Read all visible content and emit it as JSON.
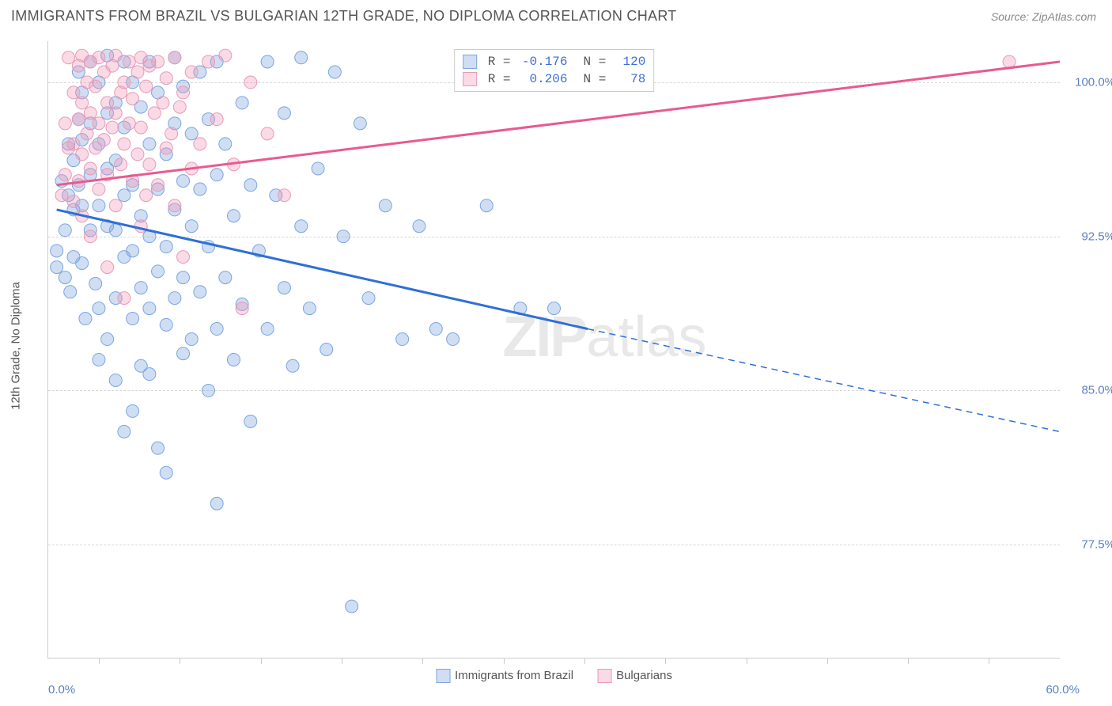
{
  "title": "IMMIGRANTS FROM BRAZIL VS BULGARIAN 12TH GRADE, NO DIPLOMA CORRELATION CHART",
  "source_label": "Source:",
  "source_name": "ZipAtlas.com",
  "watermark_text_bold": "ZIP",
  "watermark_text_light": "atlas",
  "chart": {
    "type": "scatter",
    "y_axis_label": "12th Grade, No Diploma",
    "xlim": [
      0,
      60
    ],
    "ylim": [
      72,
      102
    ],
    "x_axis_min_label": "0.0%",
    "x_axis_max_label": "60.0%",
    "x_tick_positions_pct": [
      5,
      13,
      21,
      29,
      37,
      45,
      53,
      61,
      69,
      77,
      85,
      93
    ],
    "y_grid": [
      {
        "value": 100.0,
        "label": "100.0%"
      },
      {
        "value": 92.5,
        "label": "92.5%"
      },
      {
        "value": 85.0,
        "label": "85.0%"
      },
      {
        "value": 77.5,
        "label": "77.5%"
      }
    ],
    "background_color": "#ffffff",
    "grid_color": "#d8d8d8",
    "axis_color": "#cccccc",
    "tick_label_color": "#5a7fc4",
    "label_color": "#555555",
    "title_color": "#555555",
    "title_fontsize": 18,
    "label_fontsize": 15,
    "tick_fontsize": 15,
    "series": [
      {
        "name": "Immigrants from Brazil",
        "legend_label": "Immigrants from Brazil",
        "color_fill": "rgba(120,160,220,0.35)",
        "color_stroke": "#7aa6e0",
        "line_color": "#2f6fd6",
        "marker_radius": 8,
        "line_width": 3,
        "r_value": "-0.176",
        "n_value": "120",
        "trend": {
          "x1": 0.5,
          "y1": 93.8,
          "x2_solid": 32,
          "y2_solid": 88.0,
          "x2": 60,
          "y2": 83.0
        },
        "points": [
          [
            0.5,
            91.8
          ],
          [
            0.5,
            91.0
          ],
          [
            0.8,
            95.2
          ],
          [
            1.0,
            92.8
          ],
          [
            1.0,
            90.5
          ],
          [
            1.2,
            97.0
          ],
          [
            1.2,
            94.5
          ],
          [
            1.3,
            89.8
          ],
          [
            1.5,
            96.2
          ],
          [
            1.5,
            93.8
          ],
          [
            1.5,
            91.5
          ],
          [
            1.8,
            100.5
          ],
          [
            1.8,
            98.2
          ],
          [
            1.8,
            95.0
          ],
          [
            2.0,
            99.5
          ],
          [
            2.0,
            97.2
          ],
          [
            2.0,
            94.0
          ],
          [
            2.0,
            91.2
          ],
          [
            2.2,
            88.5
          ],
          [
            2.5,
            101.0
          ],
          [
            2.5,
            98.0
          ],
          [
            2.5,
            95.5
          ],
          [
            2.5,
            92.8
          ],
          [
            2.8,
            90.2
          ],
          [
            3.0,
            100.0
          ],
          [
            3.0,
            97.0
          ],
          [
            3.0,
            94.0
          ],
          [
            3.0,
            89.0
          ],
          [
            3.0,
            86.5
          ],
          [
            3.5,
            101.3
          ],
          [
            3.5,
            98.5
          ],
          [
            3.5,
            95.8
          ],
          [
            3.5,
            93.0
          ],
          [
            3.5,
            87.5
          ],
          [
            4.0,
            99.0
          ],
          [
            4.0,
            96.2
          ],
          [
            4.0,
            92.8
          ],
          [
            4.0,
            89.5
          ],
          [
            4.0,
            85.5
          ],
          [
            4.5,
            101.0
          ],
          [
            4.5,
            97.8
          ],
          [
            4.5,
            94.5
          ],
          [
            4.5,
            91.5
          ],
          [
            4.5,
            83.0
          ],
          [
            5.0,
            100.0
          ],
          [
            5.0,
            95.0
          ],
          [
            5.0,
            91.8
          ],
          [
            5.0,
            88.5
          ],
          [
            5.0,
            84.0
          ],
          [
            5.5,
            98.8
          ],
          [
            5.5,
            93.5
          ],
          [
            5.5,
            90.0
          ],
          [
            5.5,
            86.2
          ],
          [
            6.0,
            101.0
          ],
          [
            6.0,
            97.0
          ],
          [
            6.0,
            92.5
          ],
          [
            6.0,
            89.0
          ],
          [
            6.0,
            85.8
          ],
          [
            6.5,
            99.5
          ],
          [
            6.5,
            94.8
          ],
          [
            6.5,
            90.8
          ],
          [
            6.5,
            82.2
          ],
          [
            7.0,
            96.5
          ],
          [
            7.0,
            92.0
          ],
          [
            7.0,
            88.2
          ],
          [
            7.0,
            81.0
          ],
          [
            7.5,
            101.2
          ],
          [
            7.5,
            98.0
          ],
          [
            7.5,
            93.8
          ],
          [
            7.5,
            89.5
          ],
          [
            8.0,
            99.8
          ],
          [
            8.0,
            95.2
          ],
          [
            8.0,
            90.5
          ],
          [
            8.0,
            86.8
          ],
          [
            8.5,
            97.5
          ],
          [
            8.5,
            93.0
          ],
          [
            8.5,
            87.5
          ],
          [
            9.0,
            100.5
          ],
          [
            9.0,
            94.8
          ],
          [
            9.0,
            89.8
          ],
          [
            9.5,
            98.2
          ],
          [
            9.5,
            92.0
          ],
          [
            9.5,
            85.0
          ],
          [
            10.0,
            101.0
          ],
          [
            10.0,
            95.5
          ],
          [
            10.0,
            88.0
          ],
          [
            10.0,
            79.5
          ],
          [
            10.5,
            97.0
          ],
          [
            10.5,
            90.5
          ],
          [
            11.0,
            93.5
          ],
          [
            11.0,
            86.5
          ],
          [
            11.5,
            99.0
          ],
          [
            11.5,
            89.2
          ],
          [
            12.0,
            95.0
          ],
          [
            12.0,
            83.5
          ],
          [
            12.5,
            91.8
          ],
          [
            13.0,
            101.0
          ],
          [
            13.0,
            88.0
          ],
          [
            13.5,
            94.5
          ],
          [
            14.0,
            98.5
          ],
          [
            14.0,
            90.0
          ],
          [
            14.5,
            86.2
          ],
          [
            15.0,
            101.2
          ],
          [
            15.0,
            93.0
          ],
          [
            15.5,
            89.0
          ],
          [
            16.0,
            95.8
          ],
          [
            16.5,
            87.0
          ],
          [
            17.0,
            100.5
          ],
          [
            17.5,
            92.5
          ],
          [
            18.0,
            74.5
          ],
          [
            18.5,
            98.0
          ],
          [
            19.0,
            89.5
          ],
          [
            20.0,
            94.0
          ],
          [
            21.0,
            87.5
          ],
          [
            22.0,
            93.0
          ],
          [
            23.0,
            88.0
          ],
          [
            24.0,
            87.5
          ],
          [
            26.0,
            94.0
          ],
          [
            28.0,
            89.0
          ],
          [
            30.0,
            89.0
          ]
        ]
      },
      {
        "name": "Bulgarians",
        "legend_label": "Bulgarians",
        "color_fill": "rgba(240,150,180,0.35)",
        "color_stroke": "#e89ab8",
        "line_color": "#e85a8f",
        "marker_radius": 8,
        "line_width": 3,
        "r_value": "0.206",
        "n_value": "78",
        "trend": {
          "x1": 0.5,
          "y1": 95.0,
          "x2": 60,
          "y2": 101.0
        },
        "points": [
          [
            0.8,
            94.5
          ],
          [
            1.0,
            98.0
          ],
          [
            1.0,
            95.5
          ],
          [
            1.2,
            101.2
          ],
          [
            1.2,
            96.8
          ],
          [
            1.5,
            99.5
          ],
          [
            1.5,
            97.0
          ],
          [
            1.5,
            94.2
          ],
          [
            1.8,
            100.8
          ],
          [
            1.8,
            98.2
          ],
          [
            1.8,
            95.2
          ],
          [
            2.0,
            101.3
          ],
          [
            2.0,
            99.0
          ],
          [
            2.0,
            96.5
          ],
          [
            2.0,
            93.5
          ],
          [
            2.3,
            100.0
          ],
          [
            2.3,
            97.5
          ],
          [
            2.5,
            101.0
          ],
          [
            2.5,
            98.5
          ],
          [
            2.5,
            95.8
          ],
          [
            2.5,
            92.5
          ],
          [
            2.8,
            99.8
          ],
          [
            2.8,
            96.8
          ],
          [
            3.0,
            101.2
          ],
          [
            3.0,
            98.0
          ],
          [
            3.0,
            94.8
          ],
          [
            3.3,
            100.5
          ],
          [
            3.3,
            97.2
          ],
          [
            3.5,
            99.0
          ],
          [
            3.5,
            95.5
          ],
          [
            3.5,
            91.0
          ],
          [
            3.8,
            100.8
          ],
          [
            3.8,
            97.8
          ],
          [
            4.0,
            101.3
          ],
          [
            4.0,
            98.5
          ],
          [
            4.0,
            94.0
          ],
          [
            4.3,
            99.5
          ],
          [
            4.3,
            96.0
          ],
          [
            4.5,
            100.0
          ],
          [
            4.5,
            97.0
          ],
          [
            4.5,
            89.5
          ],
          [
            4.8,
            101.0
          ],
          [
            4.8,
            98.0
          ],
          [
            5.0,
            99.2
          ],
          [
            5.0,
            95.2
          ],
          [
            5.3,
            100.5
          ],
          [
            5.3,
            96.5
          ],
          [
            5.5,
            101.2
          ],
          [
            5.5,
            97.8
          ],
          [
            5.5,
            93.0
          ],
          [
            5.8,
            99.8
          ],
          [
            5.8,
            94.5
          ],
          [
            6.0,
            100.8
          ],
          [
            6.0,
            96.0
          ],
          [
            6.3,
            98.5
          ],
          [
            6.5,
            101.0
          ],
          [
            6.5,
            95.0
          ],
          [
            6.8,
            99.0
          ],
          [
            7.0,
            100.2
          ],
          [
            7.0,
            96.8
          ],
          [
            7.3,
            97.5
          ],
          [
            7.5,
            101.2
          ],
          [
            7.5,
            94.0
          ],
          [
            7.8,
            98.8
          ],
          [
            8.0,
            99.5
          ],
          [
            8.0,
            91.5
          ],
          [
            8.5,
            100.5
          ],
          [
            8.5,
            95.8
          ],
          [
            9.0,
            97.0
          ],
          [
            9.5,
            101.0
          ],
          [
            10.0,
            98.2
          ],
          [
            10.5,
            101.3
          ],
          [
            11.0,
            96.0
          ],
          [
            11.5,
            89.0
          ],
          [
            12.0,
            100.0
          ],
          [
            13.0,
            97.5
          ],
          [
            14.0,
            94.5
          ],
          [
            57.0,
            101.0
          ]
        ]
      }
    ]
  },
  "bottom_legend": [
    {
      "label": "Immigrants from Brazil",
      "fill": "rgba(120,160,220,0.35)",
      "stroke": "#7aa6e0"
    },
    {
      "label": "Bulgarians",
      "fill": "rgba(240,150,180,0.35)",
      "stroke": "#e89ab8"
    }
  ]
}
